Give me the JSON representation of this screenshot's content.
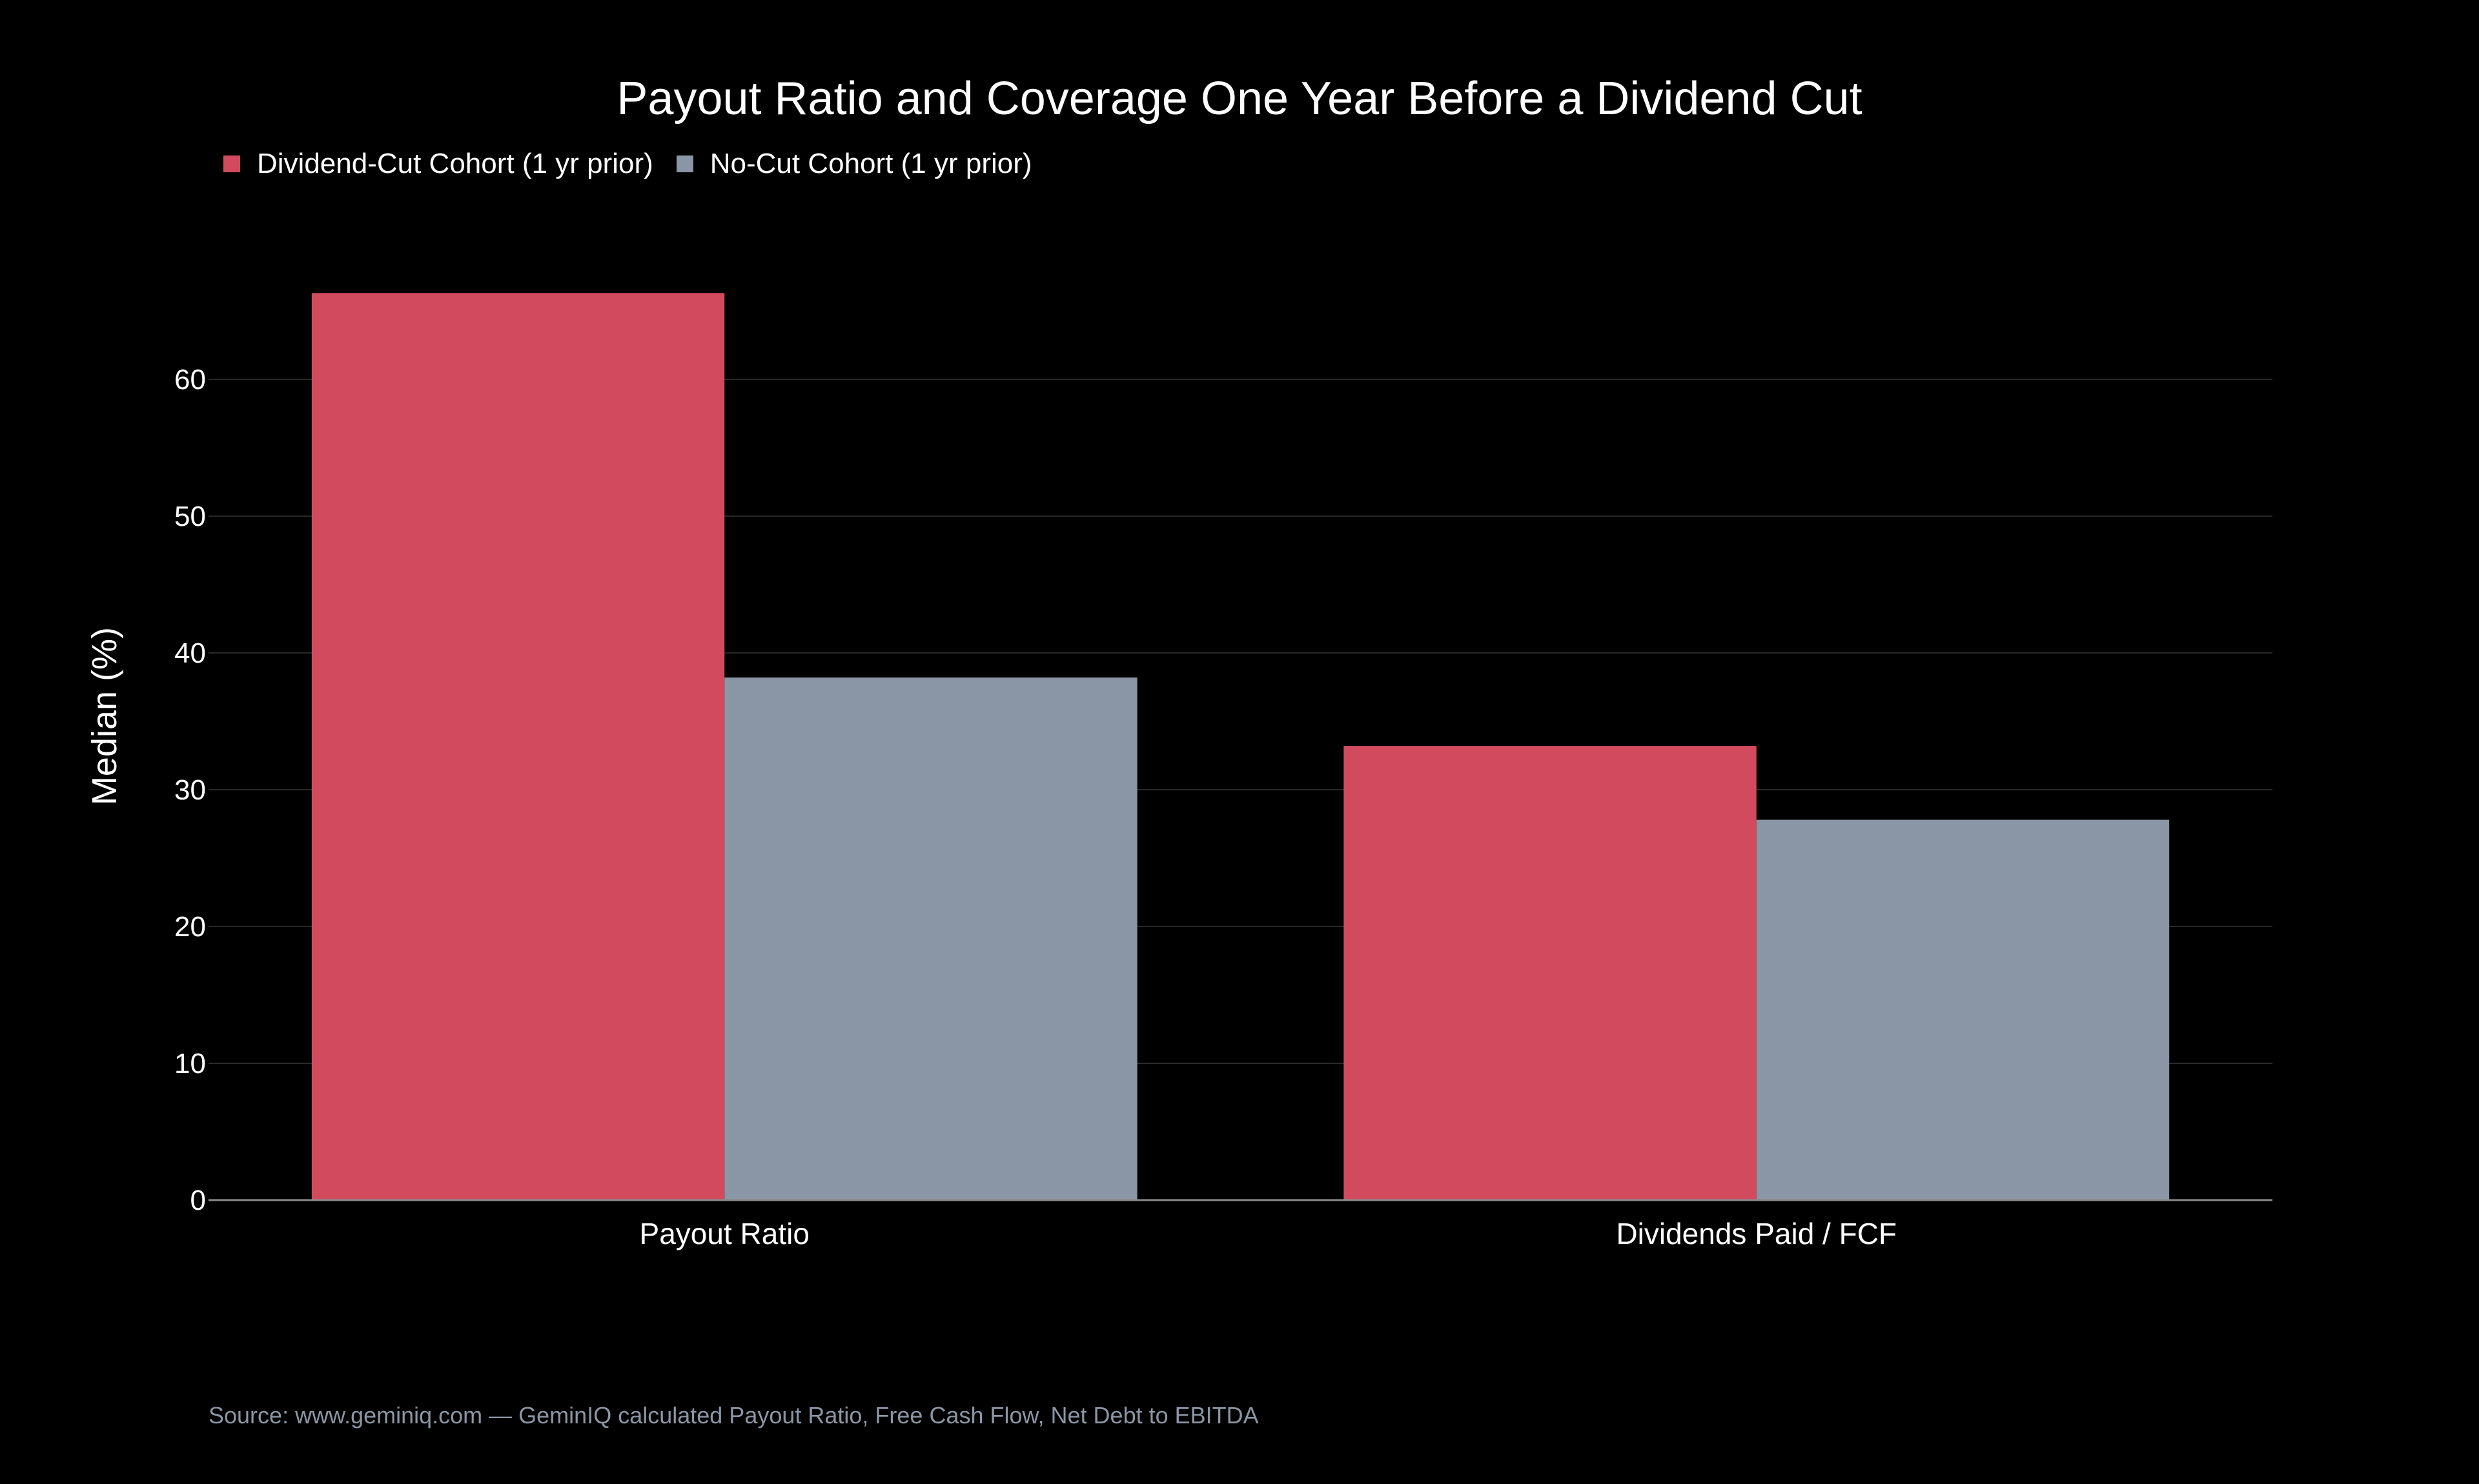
{
  "chart_data": {
    "type": "bar",
    "title": "Payout Ratio and Coverage One Year Before a Dividend Cut",
    "xlabel": "",
    "ylabel": "Median (%)",
    "categories": [
      "Payout Ratio",
      "Dividends Paid / FCF"
    ],
    "series": [
      {
        "name": "Dividend-Cut Cohort (1 yr prior)",
        "color": "#d14a5e",
        "values": [
          66.3,
          33.2
        ]
      },
      {
        "name": "No-Cut Cohort (1 yr prior)",
        "color": "#8a95a5",
        "values": [
          38.2,
          27.8
        ]
      }
    ],
    "ylim": [
      0,
      69
    ],
    "yticks": [
      0,
      10,
      20,
      30,
      40,
      50,
      60
    ],
    "ytick_labels": [
      "0",
      "10",
      "20",
      "30",
      "40",
      "50",
      "60"
    ],
    "grid": true,
    "legend_position": "top-left"
  },
  "source": "Source: www.geminiq.com — GeminIQ calculated Payout Ratio, Free Cash Flow, Net Debt to EBITDA",
  "colors": {
    "background": "#000000",
    "text": "#ffffff",
    "gridline": "#2a2a2a",
    "axis_line": "#8c8c8c",
    "source_text": "#8b96a5"
  }
}
